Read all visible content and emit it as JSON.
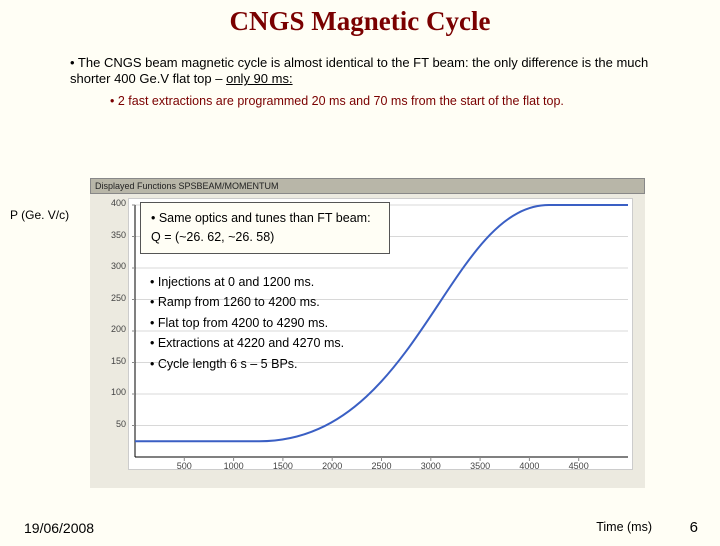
{
  "title": "CNGS Magnetic Cycle",
  "intro_bullet": "• The CNGS beam magnetic cycle is almost identical to the FT beam: the only difference is the much shorter 400 Ge.V flat top – ",
  "intro_underlined": "only 90 ms:",
  "intro_sub": "• 2 fast extractions  are programmed 20 ms and 70 ms from the start of the flat top.",
  "ylabel": "P (Ge. V/c)",
  "xlabel": "Time (ms)",
  "date": "19/06/2008",
  "page": "6",
  "chart": {
    "type": "line",
    "header_text": "Displayed Functions SPSBEAM/MOMENTUM",
    "line_color": "#3a5fc4",
    "line_width": 2,
    "axis_color": "#000000",
    "grid_color": "#d8d8d8",
    "tick_color": "#888888",
    "background_plot": "#ffffff",
    "background_frame": "#eceae0",
    "header_bg": "#b8b6a8",
    "xlim": [
      0,
      5000
    ],
    "ylim": [
      0,
      400
    ],
    "xtick_step": 500,
    "ytick_step": 50,
    "xtick_labels": [
      "500",
      "1000",
      "1500",
      "2000",
      "2500",
      "3000",
      "3500",
      "4000",
      "4500"
    ],
    "ytick_labels": [
      "50",
      "100",
      "150",
      "200",
      "250",
      "300",
      "350",
      "400"
    ],
    "tick_fontsize": 9,
    "data_x": [
      0,
      1200,
      1260,
      4200,
      4290,
      5000
    ],
    "data_y": [
      25,
      25,
      25,
      400,
      400,
      400
    ],
    "ramp_curve": true
  },
  "callout1": {
    "line1": "• Same optics and tunes than FT beam:",
    "line2": "  Q = (~26. 62, ~26. 58)"
  },
  "callout2": {
    "l1": "• Injections at 0 and 1200 ms.",
    "l2": "• Ramp from 1260 to 4200 ms.",
    "l3": "• Flat top from 4200 to 4290 ms.",
    "l4": "• Extractions at 4220 and 4270 ms.",
    "l5": "• Cycle length 6 s – 5 BPs."
  }
}
